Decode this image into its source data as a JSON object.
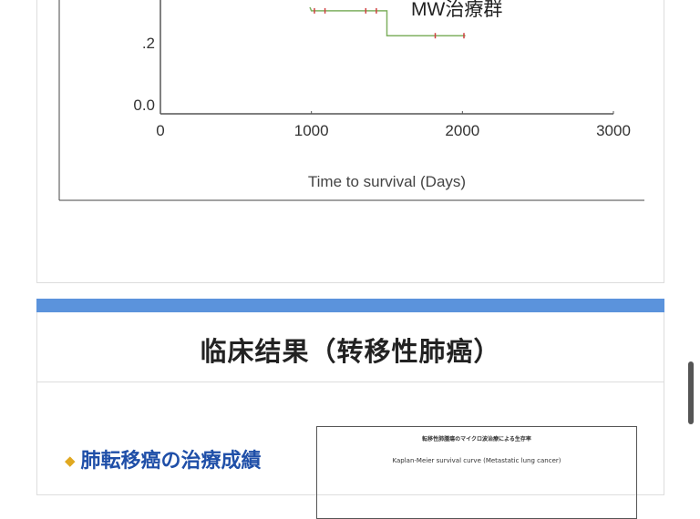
{
  "chart_data": {
    "type": "line",
    "xlabel": "Time to survival (Days)",
    "x_ticks": [
      "0",
      "1000",
      "2000",
      "3000"
    ],
    "y_ticks": [
      "0.0",
      ".2"
    ],
    "xlim": [
      0,
      3000
    ],
    "ylim": [
      0,
      0.3
    ],
    "series": [
      {
        "name": "MW治療群",
        "color": "#7fb060",
        "censor_color": "#d04040",
        "steps": [
          [
            990,
            0.3
          ],
          [
            1000,
            0.29
          ],
          [
            1500,
            0.29
          ],
          [
            1500,
            0.22
          ],
          [
            2020,
            0.22
          ]
        ],
        "censored": [
          1020,
          1090,
          1360,
          1430,
          1820,
          2010
        ]
      }
    ]
  },
  "section": {
    "title": "临床结果（转移性肺癌）",
    "subhead": "肺転移癌の治療成績",
    "figure_title": "転移性肺腫瘍のマイクロ波治療による生存率",
    "figure_subtitle": "Kaplan-Meier survival curve (Metastatic lung cancer)"
  },
  "colors": {
    "accent_bar": "#5b93dc",
    "subhead": "#1f4fa8",
    "bullet": "#e0a820"
  }
}
